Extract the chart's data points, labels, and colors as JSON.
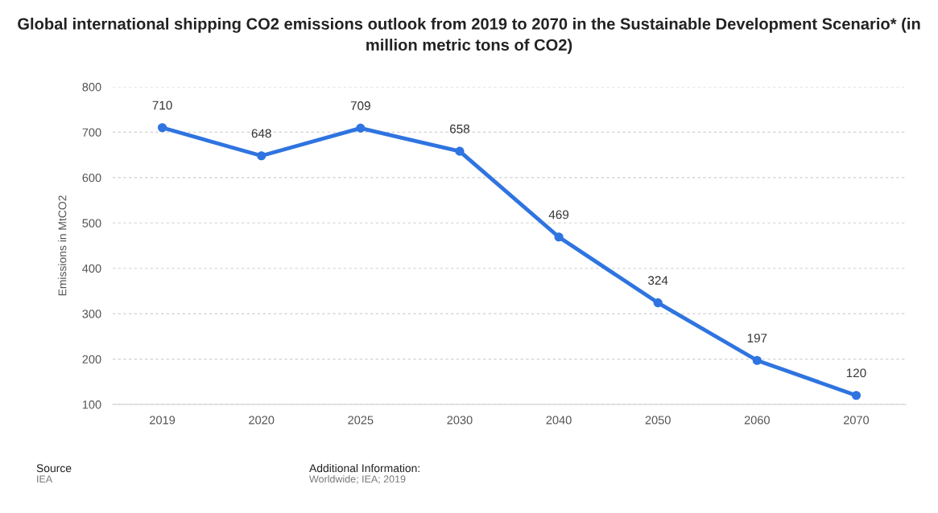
{
  "chart_data": {
    "type": "line",
    "title": "Global international shipping CO2 emissions outlook from 2019 to 2070 in the Sustainable Development Scenario* (in million metric tons of CO2)",
    "ylabel": "Emissions in MtCO2",
    "categories": [
      "2019",
      "2020",
      "2025",
      "2030",
      "2040",
      "2050",
      "2060",
      "2070"
    ],
    "series": [
      {
        "color": "#2f74e0",
        "values": [
          710,
          648,
          709,
          658,
          469,
          324,
          197,
          120
        ]
      }
    ],
    "ylim": [
      100,
      800
    ],
    "yticks": [
      100,
      200,
      300,
      400,
      500,
      600,
      700,
      800
    ],
    "grid": "y",
    "marker": "circle",
    "line_style": "solid",
    "data_labels": true,
    "annotations": [
      "Source",
      "IEA",
      "Additional Information:",
      "Worldwide; IEA; 2019"
    ]
  }
}
